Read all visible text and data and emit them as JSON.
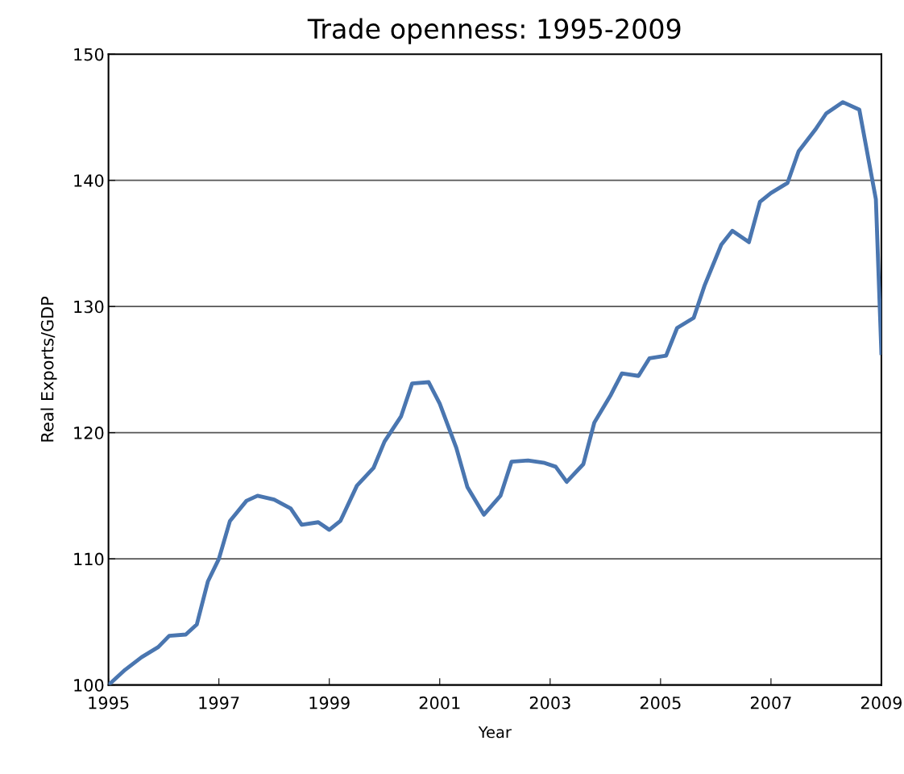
{
  "chart_data": {
    "type": "line",
    "title": "Trade openness: 1995-2009",
    "xlabel": "Year",
    "ylabel": "Real Exports/GDP",
    "x": [
      1995.0,
      1995.3,
      1995.6,
      1995.9,
      1996.1,
      1996.4,
      1996.6,
      1996.8,
      1997.0,
      1997.2,
      1997.5,
      1997.7,
      1998.0,
      1998.3,
      1998.5,
      1998.8,
      1999.0,
      1999.2,
      1999.5,
      1999.8,
      2000.0,
      2000.3,
      2000.5,
      2000.8,
      2001.0,
      2001.3,
      2001.5,
      2001.8,
      2002.1,
      2002.3,
      2002.6,
      2002.9,
      2003.1,
      2003.3,
      2003.6,
      2003.8,
      2004.1,
      2004.3,
      2004.6,
      2004.8,
      2005.1,
      2005.3,
      2005.6,
      2005.8,
      2006.1,
      2006.3,
      2006.6,
      2006.8,
      2007.0,
      2007.3,
      2007.5,
      2007.8,
      2008.0,
      2008.3,
      2008.6,
      2008.9,
      2009.0
    ],
    "series": [
      {
        "color": "#4a76b0",
        "values": [
          100,
          101.2,
          102.2,
          103.0,
          103.9,
          104.0,
          104.8,
          108.2,
          110.0,
          113.0,
          114.6,
          115.0,
          114.7,
          114.0,
          112.7,
          112.9,
          112.3,
          113.0,
          115.8,
          117.2,
          119.3,
          121.3,
          123.9,
          124.0,
          122.3,
          118.8,
          115.7,
          113.5,
          115.0,
          117.7,
          117.8,
          117.6,
          117.3,
          116.1,
          117.5,
          120.8,
          123.0,
          124.7,
          124.5,
          125.9,
          126.1,
          128.3,
          129.1,
          131.7,
          134.9,
          136.0,
          135.1,
          138.3,
          139.0,
          139.8,
          142.3,
          144.0,
          145.3,
          146.2,
          145.6,
          138.5,
          126.3
        ]
      }
    ],
    "xlim": [
      1995,
      2009
    ],
    "xticks": [
      1995,
      1997,
      1999,
      2001,
      2003,
      2005,
      2007,
      2009
    ],
    "ylim": [
      100,
      150
    ],
    "yticks": [
      100,
      110,
      120,
      130,
      140,
      150
    ],
    "grid": "y",
    "marker": "none",
    "line_style": "solid"
  }
}
